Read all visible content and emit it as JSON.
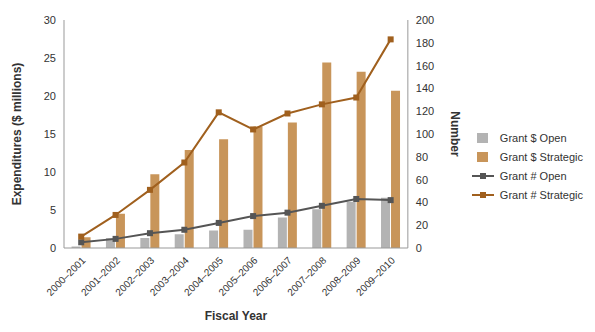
{
  "chart_data": {
    "type": "bar",
    "x_label": "Fiscal Year",
    "y_label": "Expenditures ($ millions)",
    "y2_label": "Number",
    "categories": [
      "2000–2001",
      "2001–2002",
      "2002–2003",
      "2003–2004",
      "2004–2005",
      "2005–2006",
      "2006–2007",
      "2007–2008",
      "2008–2009",
      "2009–2010"
    ],
    "series": [
      {
        "name": "Grant $ Open",
        "type": "bar",
        "color": "#b3b3b3",
        "values": [
          0.2,
          1.3,
          1.3,
          1.8,
          2.3,
          2.4,
          4.0,
          5.1,
          6.1,
          6.6
        ]
      },
      {
        "name": "Grant $ Strategic",
        "type": "bar",
        "color": "#c8955a",
        "values": [
          1.4,
          4.5,
          9.7,
          12.9,
          14.3,
          16.0,
          16.5,
          24.4,
          23.2,
          20.7
        ]
      },
      {
        "name": "Grant # Open",
        "type": "line",
        "axis": "y2",
        "color": "#555555",
        "marker": "square",
        "values": [
          5,
          8,
          13,
          16,
          22,
          28,
          31,
          37,
          43,
          42
        ]
      },
      {
        "name": "Grant # Strategic",
        "type": "line",
        "axis": "y2",
        "color": "#a0601e",
        "marker": "square",
        "values": [
          10,
          29,
          51,
          75,
          119,
          104,
          118,
          126,
          132,
          183
        ]
      }
    ],
    "ylim": [
      0,
      30
    ],
    "yticks": [
      0,
      5,
      10,
      15,
      20,
      25,
      30
    ],
    "y2lim": [
      0,
      200
    ],
    "y2ticks": [
      0,
      20,
      40,
      60,
      80,
      100,
      120,
      140,
      160,
      180,
      200
    ],
    "grid": false,
    "legend": "right"
  }
}
